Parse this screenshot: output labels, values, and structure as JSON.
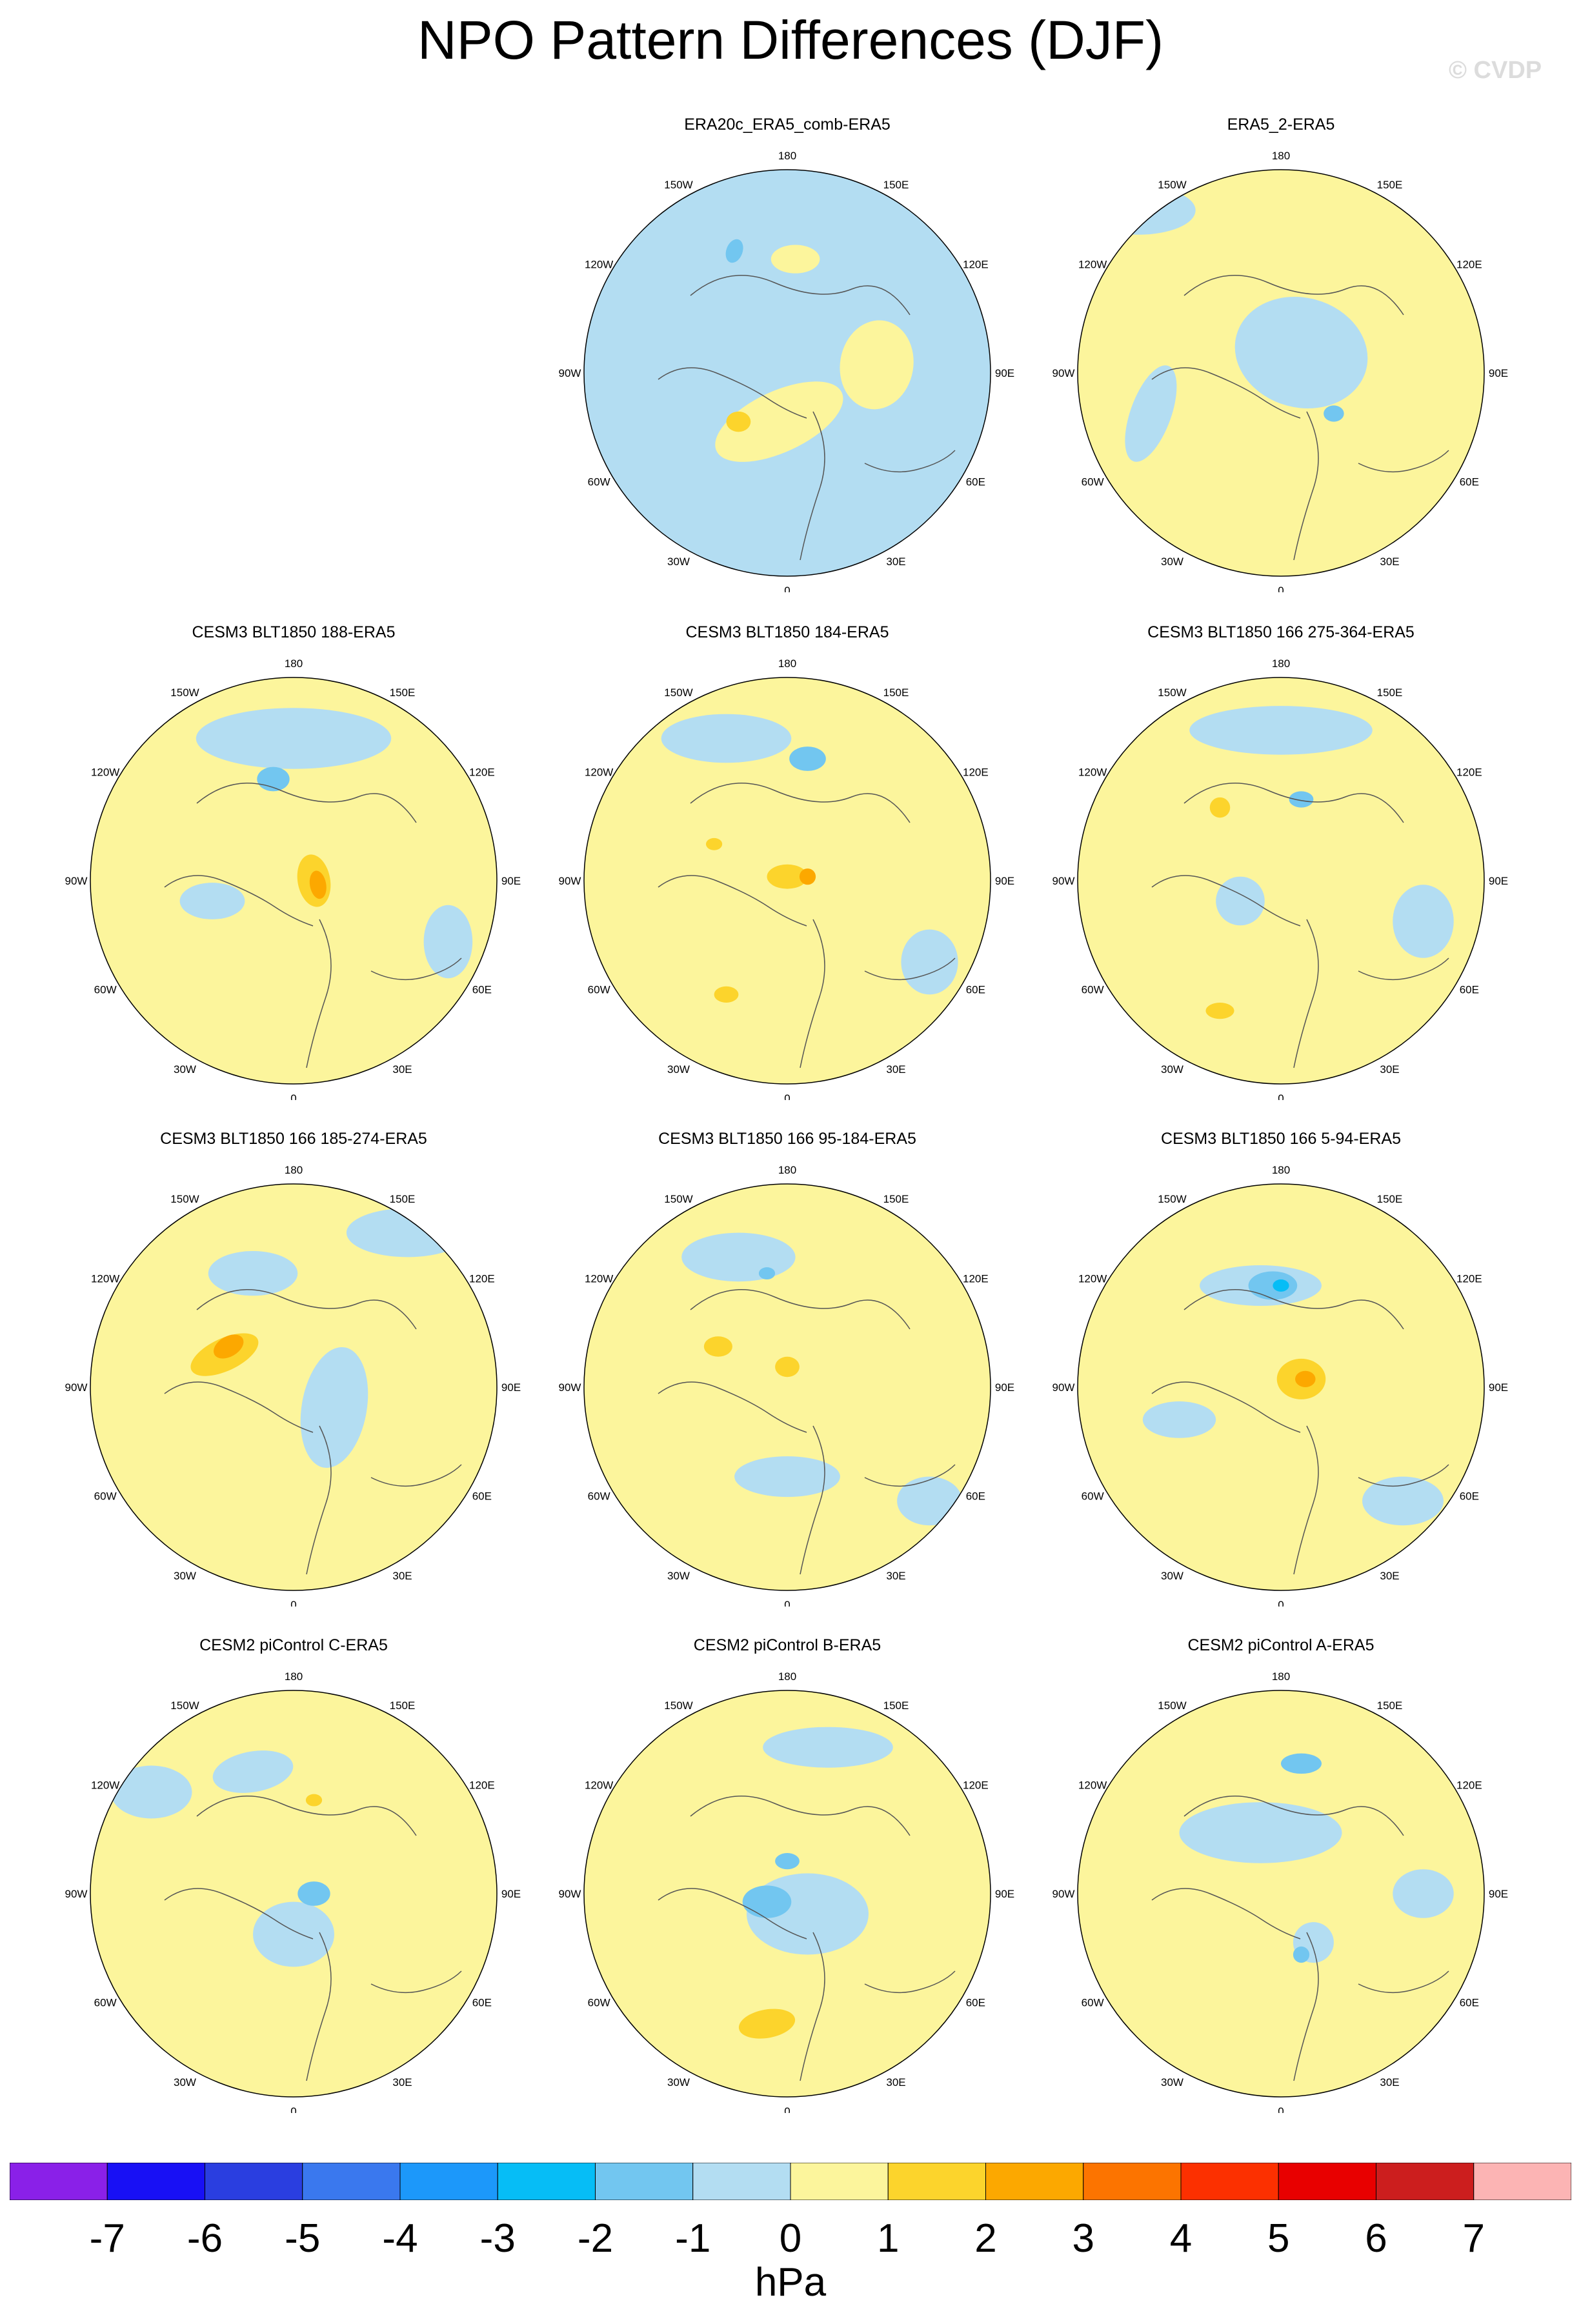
{
  "title": "NPO Pattern Differences (DJF)",
  "credit": "© CVDP",
  "units": "hPa",
  "colorbar": {
    "colors": [
      "#8a20e8",
      "#1810f5",
      "#2a3ee0",
      "#3a78ee",
      "#1c98fa",
      "#06bdf6",
      "#72c6f0",
      "#b3ddf2",
      "#fcf59c",
      "#fcd42c",
      "#fca800",
      "#fc7400",
      "#fc3000",
      "#e80000",
      "#cc1e1e",
      "#fcb4b4"
    ],
    "labels": [
      "-7",
      "-6",
      "-5",
      "-4",
      "-3",
      "-2",
      "-1",
      "0",
      "1",
      "2",
      "3",
      "4",
      "5",
      "6",
      "7"
    ]
  },
  "lon_labels": [
    "180",
    "150E",
    "120E",
    "90E",
    "60E",
    "30E",
    "0",
    "30W",
    "60W",
    "90W",
    "120W",
    "150W"
  ],
  "panels": [
    {
      "title": "ERA20c_ERA5_comb-ERA5",
      "base": "neg",
      "blobs": [
        [
          "pos",
          0.48,
          0.62,
          0.34,
          0.15,
          -25
        ],
        [
          "pos",
          0.72,
          0.48,
          0.18,
          0.22,
          10
        ],
        [
          "pos",
          0.52,
          0.22,
          0.12,
          0.07,
          0
        ],
        [
          "pos",
          0.38,
          0.62,
          0.06,
          0.05,
          0,
          "l2"
        ],
        [
          "neg",
          0.37,
          0.2,
          0.04,
          0.06,
          20,
          "n2"
        ]
      ]
    },
    {
      "title": "ERA5_2-ERA5",
      "base": "pos",
      "blobs": [
        [
          "neg",
          0.55,
          0.45,
          0.33,
          0.27,
          15
        ],
        [
          "neg",
          0.18,
          0.6,
          0.1,
          0.25,
          20
        ],
        [
          "neg",
          0.15,
          0.1,
          0.28,
          0.12,
          0
        ],
        [
          "neg",
          0.63,
          0.6,
          0.05,
          0.04,
          0,
          "n2"
        ]
      ]
    },
    {
      "title": "CESM3 BLT1850 188-ERA5",
      "base": "pos",
      "blobs": [
        [
          "neg",
          0.5,
          0.15,
          0.48,
          0.15,
          0
        ],
        [
          "neg",
          0.3,
          0.55,
          0.16,
          0.09,
          0
        ],
        [
          "neg",
          0.88,
          0.65,
          0.12,
          0.18,
          0
        ],
        [
          "neg",
          0.45,
          0.25,
          0.08,
          0.06,
          0,
          "n2"
        ],
        [
          "pos",
          0.55,
          0.5,
          0.08,
          0.13,
          -10,
          "l2"
        ],
        [
          "pos",
          0.56,
          0.51,
          0.04,
          0.07,
          -10,
          "l3"
        ]
      ]
    },
    {
      "title": "CESM3 BLT1850 184-ERA5",
      "base": "pos",
      "blobs": [
        [
          "neg",
          0.35,
          0.15,
          0.32,
          0.12,
          0
        ],
        [
          "neg",
          0.85,
          0.7,
          0.14,
          0.16,
          0
        ],
        [
          "neg",
          0.55,
          0.2,
          0.09,
          0.06,
          0,
          "n2"
        ],
        [
          "pos",
          0.5,
          0.49,
          0.1,
          0.06,
          0,
          "l2"
        ],
        [
          "pos",
          0.55,
          0.49,
          0.04,
          0.04,
          0,
          "l3"
        ],
        [
          "pos",
          0.35,
          0.78,
          0.06,
          0.04,
          0,
          "l2"
        ],
        [
          "pos",
          0.32,
          0.41,
          0.04,
          0.03,
          0,
          "l2"
        ]
      ]
    },
    {
      "title": "CESM3 BLT1850 166 275-364-ERA5",
      "base": "pos",
      "blobs": [
        [
          "neg",
          0.5,
          0.13,
          0.45,
          0.12,
          0
        ],
        [
          "neg",
          0.4,
          0.55,
          0.12,
          0.12,
          0
        ],
        [
          "neg",
          0.85,
          0.6,
          0.15,
          0.18,
          0
        ],
        [
          "neg",
          0.55,
          0.3,
          0.06,
          0.04,
          0,
          "n2"
        ],
        [
          "pos",
          0.35,
          0.32,
          0.05,
          0.05,
          0,
          "l2"
        ],
        [
          "pos",
          0.35,
          0.82,
          0.07,
          0.04,
          0,
          "l2"
        ]
      ]
    },
    {
      "title": "CESM3 BLT1850 166 185-274-ERA5",
      "base": "pos",
      "blobs": [
        [
          "neg",
          0.4,
          0.22,
          0.22,
          0.11,
          0
        ],
        [
          "neg",
          0.78,
          0.12,
          0.3,
          0.12,
          0
        ],
        [
          "neg",
          0.6,
          0.55,
          0.16,
          0.3,
          10
        ],
        [
          "pos",
          0.33,
          0.42,
          0.18,
          0.08,
          -25,
          "l2"
        ],
        [
          "pos",
          0.34,
          0.4,
          0.08,
          0.05,
          -30,
          "l3"
        ]
      ]
    },
    {
      "title": "CESM3 BLT1850 166 95-184-ERA5",
      "base": "pos",
      "blobs": [
        [
          "neg",
          0.38,
          0.18,
          0.28,
          0.12,
          0
        ],
        [
          "neg",
          0.5,
          0.72,
          0.26,
          0.1,
          0
        ],
        [
          "neg",
          0.85,
          0.78,
          0.16,
          0.12,
          0
        ],
        [
          "neg",
          0.45,
          0.22,
          0.04,
          0.03,
          0,
          "n2"
        ],
        [
          "pos",
          0.33,
          0.4,
          0.07,
          0.05,
          0,
          "l2"
        ],
        [
          "pos",
          0.5,
          0.45,
          0.06,
          0.05,
          0,
          "l2"
        ]
      ]
    },
    {
      "title": "CESM3 BLT1850 166 5-94-ERA5",
      "base": "pos",
      "blobs": [
        [
          "neg",
          0.45,
          0.25,
          0.3,
          0.1,
          0
        ],
        [
          "neg",
          0.25,
          0.58,
          0.18,
          0.09,
          0
        ],
        [
          "neg",
          0.8,
          0.78,
          0.2,
          0.12,
          0
        ],
        [
          "neg",
          0.48,
          0.25,
          0.12,
          0.07,
          0,
          "n2"
        ],
        [
          "neg",
          0.5,
          0.25,
          0.04,
          0.03,
          0,
          "n3"
        ],
        [
          "pos",
          0.55,
          0.48,
          0.12,
          0.1,
          0,
          "l2"
        ],
        [
          "pos",
          0.56,
          0.48,
          0.05,
          0.04,
          0,
          "l3"
        ]
      ]
    },
    {
      "title": "CESM2 piControl C-ERA5",
      "base": "pos",
      "blobs": [
        [
          "neg",
          0.4,
          0.2,
          0.2,
          0.1,
          -10
        ],
        [
          "neg",
          0.5,
          0.6,
          0.2,
          0.16,
          0
        ],
        [
          "neg",
          0.15,
          0.25,
          0.2,
          0.13,
          0
        ],
        [
          "neg",
          0.55,
          0.5,
          0.08,
          0.06,
          0,
          "n2"
        ],
        [
          "pos",
          0.55,
          0.27,
          0.04,
          0.03,
          0,
          "l2"
        ]
      ]
    },
    {
      "title": "CESM2 piControl B-ERA5",
      "base": "pos",
      "blobs": [
        [
          "neg",
          0.55,
          0.55,
          0.3,
          0.2,
          0
        ],
        [
          "neg",
          0.6,
          0.14,
          0.32,
          0.1,
          0
        ],
        [
          "neg",
          0.45,
          0.52,
          0.12,
          0.08,
          0,
          "n2"
        ],
        [
          "neg",
          0.5,
          0.42,
          0.06,
          0.04,
          0,
          "n2"
        ],
        [
          "pos",
          0.45,
          0.82,
          0.14,
          0.07,
          -10,
          "l2"
        ]
      ]
    },
    {
      "title": "CESM2 piControl A-ERA5",
      "base": "pos",
      "blobs": [
        [
          "neg",
          0.45,
          0.35,
          0.4,
          0.15,
          0
        ],
        [
          "neg",
          0.58,
          0.62,
          0.1,
          0.1,
          0
        ],
        [
          "neg",
          0.85,
          0.5,
          0.15,
          0.12,
          0
        ],
        [
          "neg",
          0.55,
          0.18,
          0.1,
          0.05,
          0,
          "n2"
        ],
        [
          "neg",
          0.55,
          0.65,
          0.04,
          0.04,
          0,
          "n2"
        ]
      ]
    }
  ]
}
